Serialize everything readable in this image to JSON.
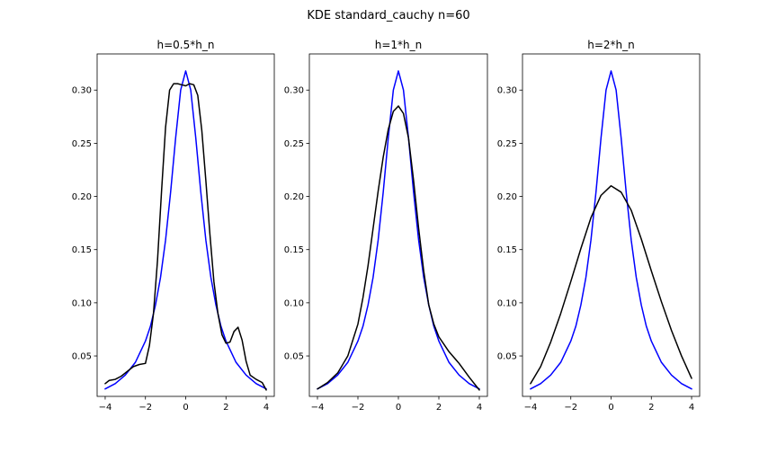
{
  "figure": {
    "title": "KDE standard_cauchy n=60",
    "curve_colors": {
      "true_density": "#0000ff",
      "kde": "#000000"
    }
  },
  "chart_data": [
    {
      "type": "line",
      "title": "h=0.5*h_n",
      "xlim": [
        -4.4,
        4.4
      ],
      "ylim": [
        0.012,
        0.334
      ],
      "xticks": [
        -4,
        -2,
        0,
        2,
        4
      ],
      "yticks": [
        0.05,
        0.1,
        0.15,
        0.2,
        0.25,
        0.3
      ],
      "series": [
        {
          "color": "#0000ff",
          "x": [
            -4,
            -3.5,
            -3,
            -2.5,
            -2,
            -1.75,
            -1.5,
            -1.25,
            -1,
            -0.75,
            -0.5,
            -0.25,
            0,
            0.25,
            0.5,
            0.75,
            1,
            1.25,
            1.5,
            1.75,
            2,
            2.5,
            3,
            3.5,
            4
          ],
          "y": [
            0.019,
            0.024,
            0.032,
            0.044,
            0.064,
            0.078,
            0.098,
            0.124,
            0.159,
            0.204,
            0.255,
            0.3,
            0.318,
            0.3,
            0.255,
            0.204,
            0.159,
            0.124,
            0.098,
            0.078,
            0.064,
            0.044,
            0.032,
            0.024,
            0.019
          ]
        },
        {
          "color": "#000000",
          "x": [
            -4,
            -3.8,
            -3.5,
            -3.2,
            -3,
            -2.6,
            -2.3,
            -2.0,
            -1.8,
            -1.6,
            -1.4,
            -1.2,
            -1.0,
            -0.8,
            -0.6,
            -0.4,
            -0.2,
            0,
            0.2,
            0.4,
            0.6,
            0.8,
            1.0,
            1.2,
            1.4,
            1.6,
            1.8,
            2.0,
            2.2,
            2.4,
            2.6,
            2.8,
            3.0,
            3.2,
            3.5,
            3.8,
            4.0
          ],
          "y": [
            0.024,
            0.027,
            0.028,
            0.031,
            0.034,
            0.04,
            0.042,
            0.043,
            0.06,
            0.09,
            0.14,
            0.205,
            0.265,
            0.3,
            0.306,
            0.306,
            0.305,
            0.304,
            0.306,
            0.305,
            0.295,
            0.262,
            0.215,
            0.165,
            0.12,
            0.09,
            0.07,
            0.062,
            0.063,
            0.073,
            0.077,
            0.065,
            0.045,
            0.032,
            0.028,
            0.025,
            0.018
          ]
        }
      ]
    },
    {
      "type": "line",
      "title": "h=1*h_n",
      "xlim": [
        -4.4,
        4.4
      ],
      "ylim": [
        0.012,
        0.334
      ],
      "xticks": [
        -4,
        -2,
        0,
        2,
        4
      ],
      "yticks": [
        0.05,
        0.1,
        0.15,
        0.2,
        0.25,
        0.3
      ],
      "series": [
        {
          "color": "#0000ff",
          "x": [
            -4,
            -3.5,
            -3,
            -2.5,
            -2,
            -1.75,
            -1.5,
            -1.25,
            -1,
            -0.75,
            -0.5,
            -0.25,
            0,
            0.25,
            0.5,
            0.75,
            1,
            1.25,
            1.5,
            1.75,
            2,
            2.5,
            3,
            3.5,
            4
          ],
          "y": [
            0.019,
            0.024,
            0.032,
            0.044,
            0.064,
            0.078,
            0.098,
            0.124,
            0.159,
            0.204,
            0.255,
            0.3,
            0.318,
            0.3,
            0.255,
            0.204,
            0.159,
            0.124,
            0.098,
            0.078,
            0.064,
            0.044,
            0.032,
            0.024,
            0.019
          ]
        },
        {
          "color": "#000000",
          "x": [
            -4,
            -3.5,
            -3,
            -2.5,
            -2,
            -1.75,
            -1.5,
            -1.25,
            -1,
            -0.75,
            -0.5,
            -0.25,
            0,
            0.25,
            0.5,
            0.75,
            1,
            1.25,
            1.5,
            1.75,
            2,
            2.5,
            3,
            3.5,
            4
          ],
          "y": [
            0.019,
            0.025,
            0.034,
            0.05,
            0.08,
            0.105,
            0.135,
            0.17,
            0.205,
            0.237,
            0.263,
            0.28,
            0.285,
            0.278,
            0.255,
            0.215,
            0.17,
            0.13,
            0.098,
            0.08,
            0.068,
            0.054,
            0.043,
            0.03,
            0.018
          ]
        }
      ]
    },
    {
      "type": "line",
      "title": "h=2*h_n",
      "xlim": [
        -4.4,
        4.4
      ],
      "ylim": [
        0.012,
        0.334
      ],
      "xticks": [
        -4,
        -2,
        0,
        2,
        4
      ],
      "yticks": [
        0.05,
        0.1,
        0.15,
        0.2,
        0.25,
        0.3
      ],
      "series": [
        {
          "color": "#0000ff",
          "x": [
            -4,
            -3.5,
            -3,
            -2.5,
            -2,
            -1.75,
            -1.5,
            -1.25,
            -1,
            -0.75,
            -0.5,
            -0.25,
            0,
            0.25,
            0.5,
            0.75,
            1,
            1.25,
            1.5,
            1.75,
            2,
            2.5,
            3,
            3.5,
            4
          ],
          "y": [
            0.019,
            0.024,
            0.032,
            0.044,
            0.064,
            0.078,
            0.098,
            0.124,
            0.159,
            0.204,
            0.255,
            0.3,
            0.318,
            0.3,
            0.255,
            0.204,
            0.159,
            0.124,
            0.098,
            0.078,
            0.064,
            0.044,
            0.032,
            0.024,
            0.019
          ]
        },
        {
          "color": "#000000",
          "x": [
            -4,
            -3.5,
            -3,
            -2.5,
            -2,
            -1.5,
            -1,
            -0.5,
            0,
            0.5,
            1,
            1.5,
            2,
            2.5,
            3,
            3.5,
            4
          ],
          "y": [
            0.024,
            0.04,
            0.063,
            0.09,
            0.12,
            0.151,
            0.18,
            0.201,
            0.21,
            0.204,
            0.187,
            0.16,
            0.13,
            0.101,
            0.074,
            0.05,
            0.029
          ]
        }
      ]
    }
  ]
}
